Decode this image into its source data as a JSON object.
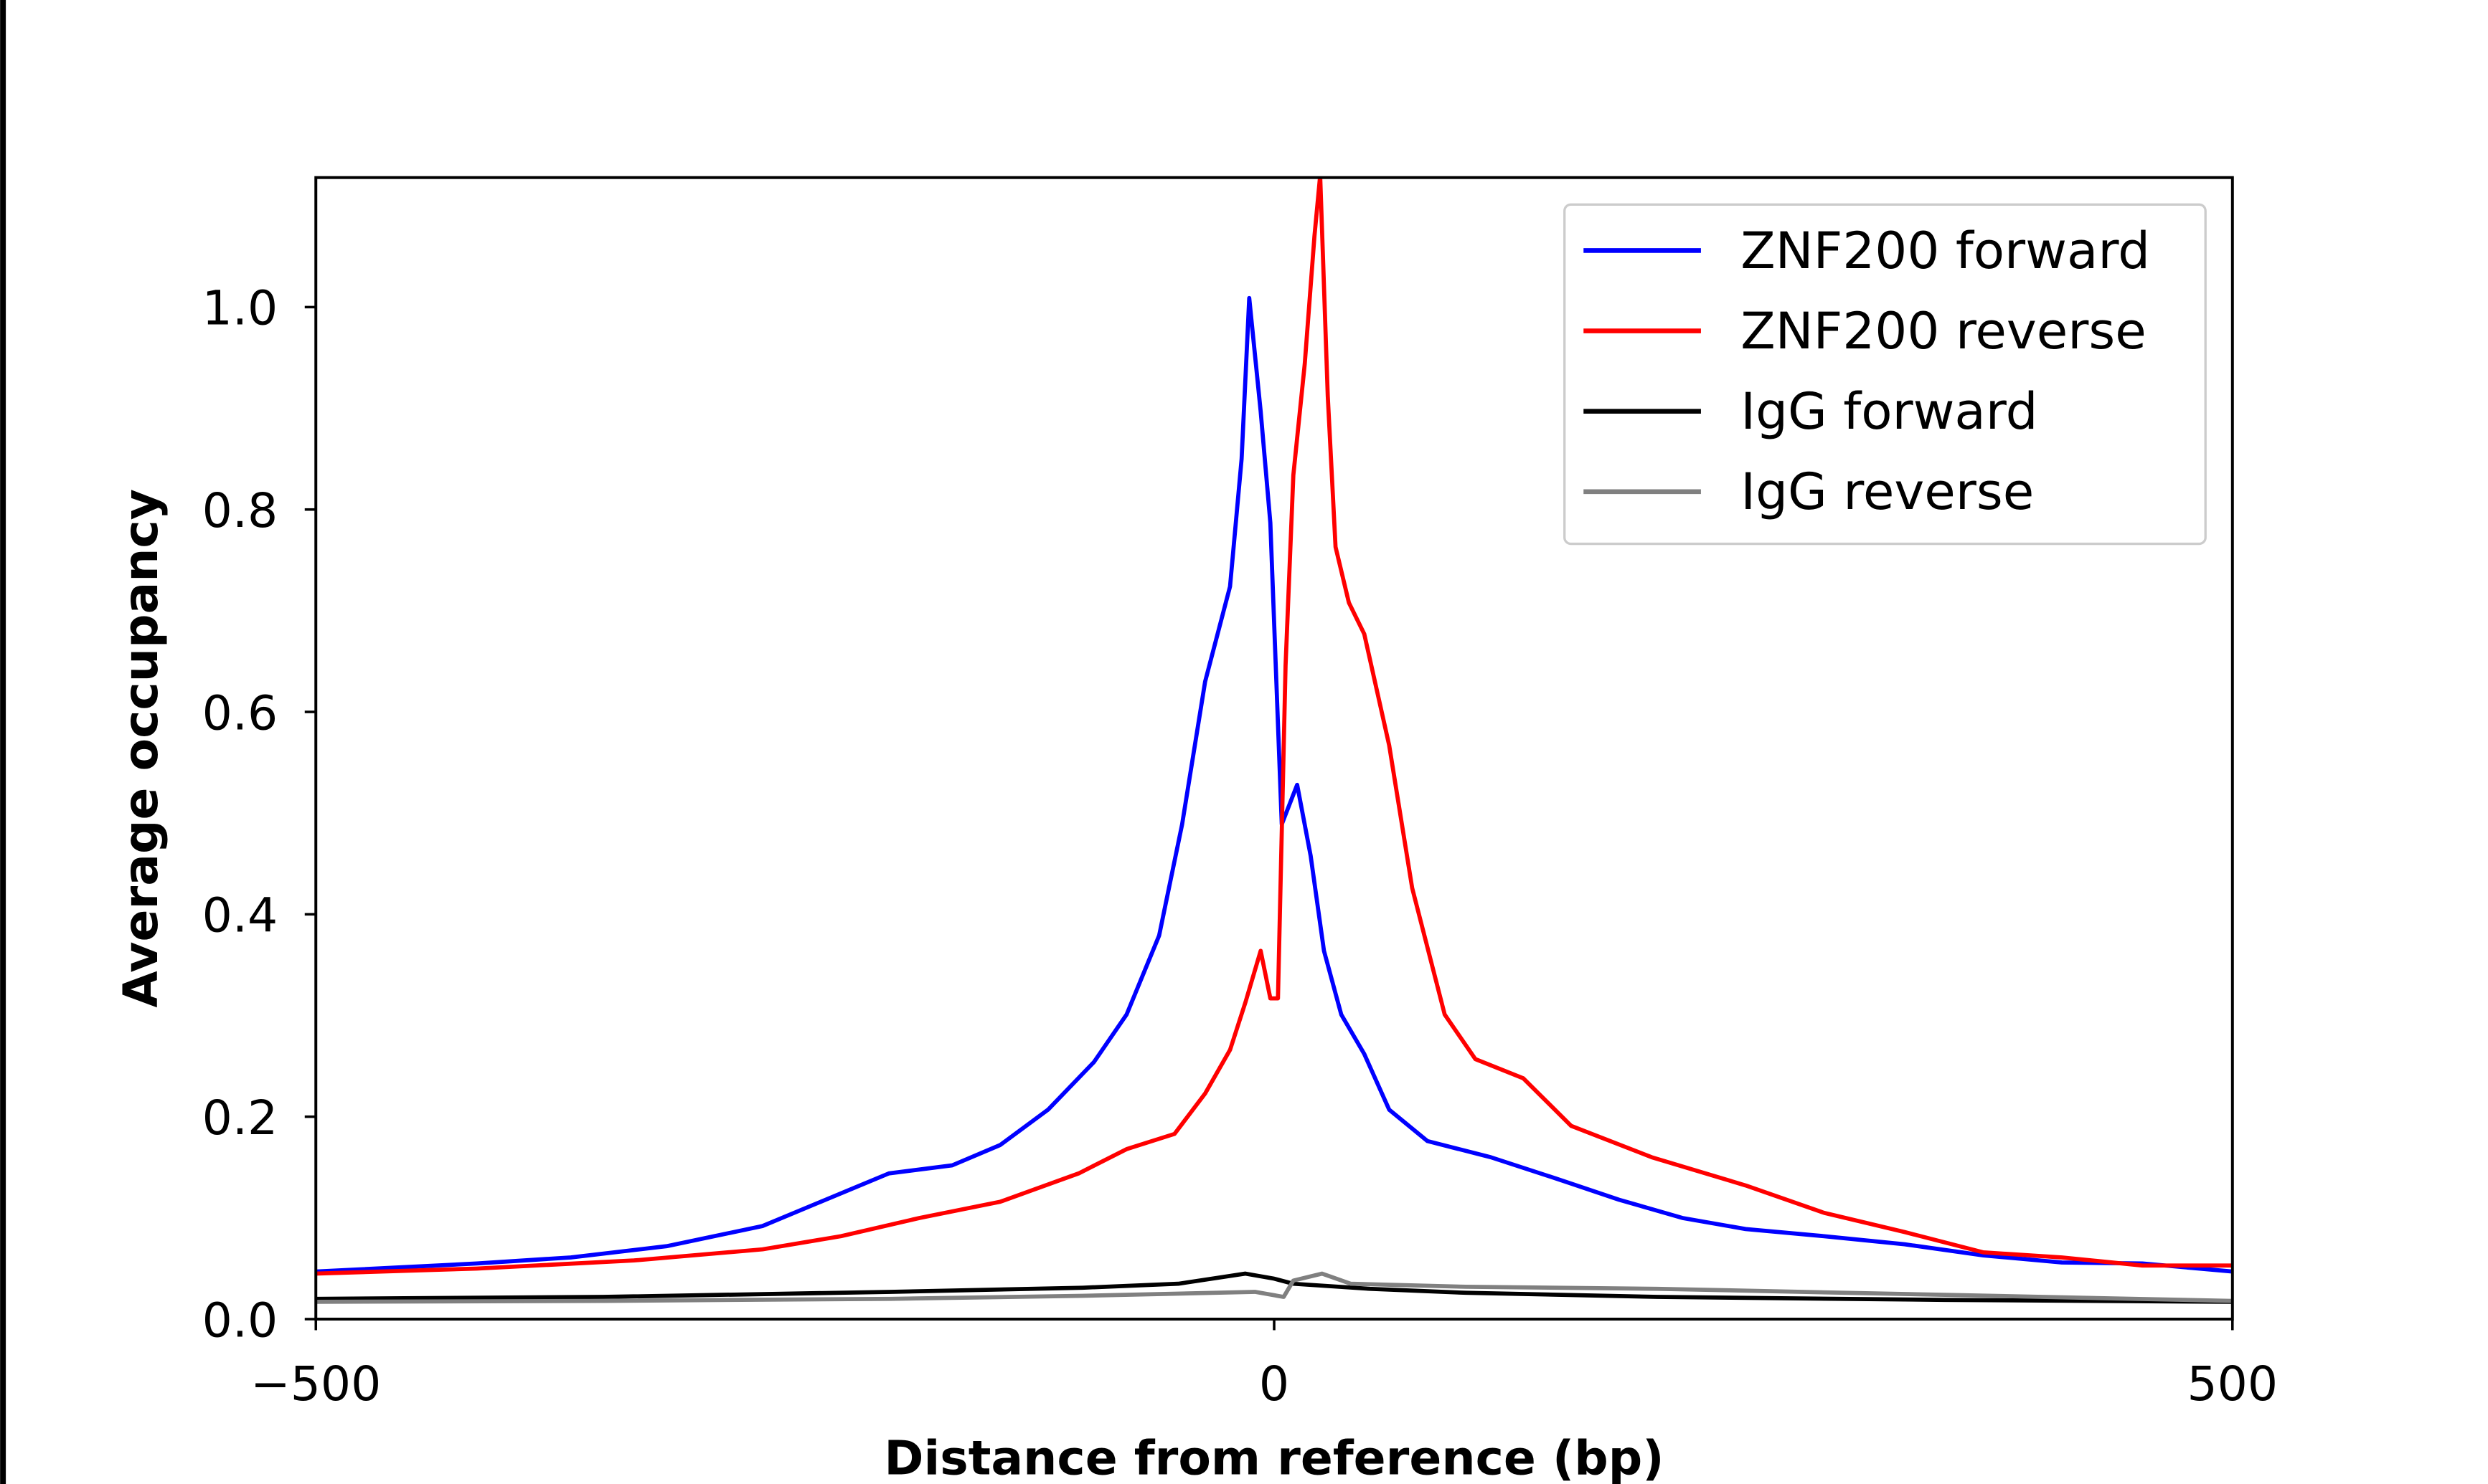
{
  "chart_data": {
    "type": "line",
    "title": "",
    "xlabel": "Distance from reference (bp)",
    "ylabel": "Average occupancy",
    "xlim": [
      -500,
      500
    ],
    "ylim": [
      0,
      1.128
    ],
    "xticks": [
      -500,
      0,
      500
    ],
    "xtick_labels": [
      "−500",
      "0",
      "500"
    ],
    "yticks": [
      0,
      0.2,
      0.4,
      0.6,
      0.8,
      1.0
    ],
    "ytick_labels": [
      "0.0",
      "0.2",
      "0.4",
      "0.6",
      "0.8",
      "1.0"
    ],
    "grid": false,
    "legend_position": "top-right",
    "series": [
      {
        "name": "ZNF200 forward",
        "color": "#0000ff",
        "x": [
          -500,
          -416,
          -367,
          -317,
          -267,
          -234,
          -201,
          -168,
          -143,
          -118,
          -94,
          -77,
          -60,
          -48,
          -36,
          -23,
          -17,
          -13,
          -7,
          -2,
          4,
          12,
          19,
          26,
          35,
          47,
          60,
          80,
          113,
          147,
          180,
          213,
          246,
          287,
          329,
          370,
          411,
          453,
          500
        ],
        "y": [
          0.047,
          0.055,
          0.061,
          0.072,
          0.092,
          0.118,
          0.144,
          0.152,
          0.172,
          0.207,
          0.254,
          0.301,
          0.379,
          0.489,
          0.63,
          0.724,
          0.85,
          1.009,
          0.897,
          0.787,
          0.489,
          0.528,
          0.458,
          0.364,
          0.301,
          0.262,
          0.207,
          0.176,
          0.16,
          0.139,
          0.118,
          0.1,
          0.089,
          0.082,
          0.074,
          0.063,
          0.056,
          0.055,
          0.047
        ]
      },
      {
        "name": "ZNF200 reverse",
        "color": "#ff0000",
        "x": [
          -500,
          -416,
          -334,
          -267,
          -226,
          -185,
          -143,
          -102,
          -77,
          -52,
          -36,
          -23,
          -15,
          -7,
          -2,
          2,
          6,
          10,
          16,
          21,
          24,
          28,
          32,
          39,
          47,
          60,
          72,
          89,
          105,
          130,
          155,
          197,
          246,
          287,
          329,
          370,
          411,
          453,
          500
        ],
        "y": [
          0.045,
          0.05,
          0.058,
          0.069,
          0.082,
          0.1,
          0.116,
          0.144,
          0.168,
          0.183,
          0.223,
          0.266,
          0.313,
          0.364,
          0.317,
          0.317,
          0.646,
          0.834,
          0.944,
          1.07,
          1.13,
          0.912,
          0.763,
          0.708,
          0.677,
          0.567,
          0.426,
          0.301,
          0.257,
          0.238,
          0.191,
          0.16,
          0.132,
          0.105,
          0.086,
          0.066,
          0.061,
          0.053,
          0.053
        ]
      },
      {
        "name": "IgG forward",
        "color": "#000000",
        "x": [
          -500,
          -350,
          -200,
          -100,
          -50,
          -15,
          0,
          10,
          50,
          100,
          200,
          350,
          500
        ],
        "y": [
          0.02,
          0.022,
          0.027,
          0.031,
          0.035,
          0.045,
          0.04,
          0.035,
          0.03,
          0.026,
          0.022,
          0.019,
          0.017
        ]
      },
      {
        "name": "IgG reverse",
        "color": "#808080",
        "x": [
          -500,
          -350,
          -200,
          -100,
          -10,
          5,
          10,
          25,
          40,
          100,
          200,
          350,
          500
        ],
        "y": [
          0.017,
          0.018,
          0.02,
          0.023,
          0.027,
          0.022,
          0.038,
          0.045,
          0.035,
          0.032,
          0.03,
          0.024,
          0.018
        ]
      }
    ]
  }
}
